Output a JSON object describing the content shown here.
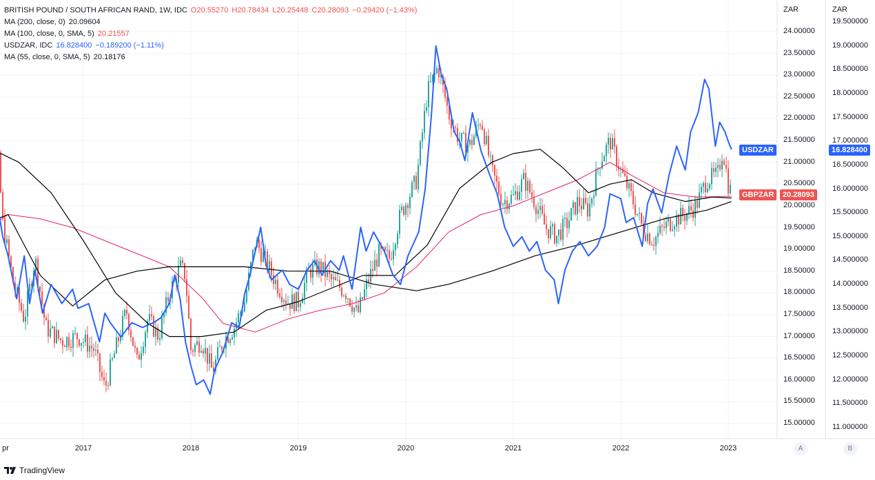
{
  "legend": {
    "main": {
      "title": "BRITISH POUND / SOUTH AFRICAN RAND, 1W, IDC",
      "o": "O20.55270",
      "h": "H20.78434",
      "l": "L20.25448",
      "c": "C20.28093",
      "chg": "−0.29420 (−1.43%)"
    },
    "ma200": {
      "label": "MA (200, close, 0)",
      "value": "20.09604"
    },
    "ma100": {
      "label": "MA (100, close, 0, SMA, 5)",
      "value": "20.21557"
    },
    "usdzar": {
      "label": "USDZAR, IDC",
      "value": "16.828400",
      "chg": "−0.189200 (−1.11%)"
    },
    "ma55": {
      "label": "MA (55, close, 0, SMA, 5)",
      "value": "20.18176"
    }
  },
  "axes": {
    "left_title": "ZAR",
    "right_title": "ZAR",
    "a_button": "A",
    "b_button": "B",
    "gbp_ticks": [
      "24.00000",
      "23.50000",
      "23.00000",
      "22.50000",
      "22.00000",
      "21.50000",
      "21.00000",
      "20.50000",
      "20.00000",
      "19.50000",
      "19.00000",
      "18.50000",
      "18.00000",
      "17.50000",
      "17.00000",
      "16.50000",
      "16.00000",
      "15.50000",
      "15.00000"
    ],
    "usd_ticks": [
      "19.500000",
      "19.000000",
      "18.500000",
      "18.000000",
      "17.500000",
      "17.000000",
      "16.500000",
      "16.000000",
      "15.500000",
      "15.000000",
      "14.500000",
      "14.000000",
      "13.500000",
      "13.000000",
      "12.500000",
      "12.000000",
      "11.500000",
      "11.000000"
    ],
    "x_ticks": [
      "pr",
      "2017",
      "2018",
      "2019",
      "2020",
      "2021",
      "2022",
      "2023"
    ]
  },
  "flags": {
    "usdzar_name": "USDZAR",
    "usdzar_value": "16.828400",
    "gbpzar_name": "GBPZAR",
    "gbpzar_value": "20.28093"
  },
  "colors": {
    "up": "#26a69a",
    "down": "#ef5350",
    "usdzar": "#2962ff",
    "ma200": "#000000",
    "ma100": "#e91e63",
    "ma55": "#000000"
  },
  "brand": "TradingView",
  "chart_data": {
    "type": "line",
    "title": "BRITISH POUND / SOUTH AFRICAN RAND, 1W, IDC",
    "gbp_ylim": [
      14.6,
      24.6
    ],
    "usd_ylim": [
      10.6,
      20.0
    ],
    "x_range": [
      2016.0,
      2023.4
    ],
    "gbpzar_close": [
      [
        2016.0,
        20.9
      ],
      [
        2016.1,
        22.8
      ],
      [
        2016.2,
        21.4
      ],
      [
        2016.25,
        19.6
      ],
      [
        2016.35,
        18.2
      ],
      [
        2016.45,
        17.4
      ],
      [
        2016.55,
        18.8
      ],
      [
        2016.65,
        17.2
      ],
      [
        2016.8,
        16.9
      ],
      [
        2016.95,
        17.0
      ],
      [
        2017.1,
        16.7
      ],
      [
        2017.2,
        15.8
      ],
      [
        2017.3,
        16.7
      ],
      [
        2017.4,
        17.6
      ],
      [
        2017.5,
        16.4
      ],
      [
        2017.6,
        17.4
      ],
      [
        2017.7,
        17.0
      ],
      [
        2017.8,
        18.0
      ],
      [
        2017.9,
        18.6
      ],
      [
        2017.95,
        18.4
      ],
      [
        2018.0,
        16.7
      ],
      [
        2018.1,
        16.9
      ],
      [
        2018.2,
        16.2
      ],
      [
        2018.3,
        16.9
      ],
      [
        2018.4,
        17.2
      ],
      [
        2018.5,
        17.8
      ],
      [
        2018.6,
        19.2
      ],
      [
        2018.7,
        18.7
      ],
      [
        2018.8,
        18.2
      ],
      [
        2018.9,
        17.8
      ],
      [
        2019.0,
        17.8
      ],
      [
        2019.1,
        18.5
      ],
      [
        2019.2,
        18.6
      ],
      [
        2019.3,
        18.3
      ],
      [
        2019.45,
        18.0
      ],
      [
        2019.55,
        17.5
      ],
      [
        2019.65,
        18.3
      ],
      [
        2019.75,
        18.9
      ],
      [
        2019.85,
        18.8
      ],
      [
        2019.95,
        19.8
      ],
      [
        2020.1,
        20.6
      ],
      [
        2020.2,
        22.6
      ],
      [
        2020.3,
        23.2
      ],
      [
        2020.4,
        22.1
      ],
      [
        2020.5,
        21.5
      ],
      [
        2020.6,
        21.4
      ],
      [
        2020.7,
        22.0
      ],
      [
        2020.8,
        20.8
      ],
      [
        2020.9,
        20.1
      ],
      [
        2021.0,
        20.2
      ],
      [
        2021.1,
        20.6
      ],
      [
        2021.2,
        20.1
      ],
      [
        2021.3,
        19.5
      ],
      [
        2021.4,
        19.3
      ],
      [
        2021.5,
        19.6
      ],
      [
        2021.6,
        20.1
      ],
      [
        2021.7,
        19.9
      ],
      [
        2021.8,
        21.0
      ],
      [
        2021.9,
        21.5
      ],
      [
        2022.0,
        20.8
      ],
      [
        2022.1,
        20.2
      ],
      [
        2022.2,
        19.5
      ],
      [
        2022.3,
        19.2
      ],
      [
        2022.4,
        19.5
      ],
      [
        2022.5,
        19.7
      ],
      [
        2022.6,
        19.8
      ],
      [
        2022.7,
        20.0
      ],
      [
        2022.8,
        20.6
      ],
      [
        2022.9,
        20.7
      ],
      [
        2022.95,
        21.3
      ],
      [
        2023.0,
        20.5
      ],
      [
        2023.03,
        20.28
      ]
    ],
    "usdzar": [
      [
        2016.0,
        15.3
      ],
      [
        2016.03,
        14.5
      ],
      [
        2016.08,
        16.4
      ],
      [
        2016.12,
        16.7
      ],
      [
        2016.2,
        15.7
      ],
      [
        2016.25,
        15.0
      ],
      [
        2016.3,
        14.6
      ],
      [
        2016.38,
        13.7
      ],
      [
        2016.45,
        14.6
      ],
      [
        2016.5,
        13.6
      ],
      [
        2016.55,
        14.3
      ],
      [
        2016.62,
        13.4
      ],
      [
        2016.7,
        14.0
      ],
      [
        2016.8,
        13.6
      ],
      [
        2016.9,
        13.9
      ],
      [
        2016.95,
        13.5
      ],
      [
        2017.05,
        13.6
      ],
      [
        2017.15,
        12.8
      ],
      [
        2017.2,
        13.4
      ],
      [
        2017.25,
        13.2
      ],
      [
        2017.35,
        12.9
      ],
      [
        2017.45,
        13.2
      ],
      [
        2017.55,
        13.1
      ],
      [
        2017.65,
        13.2
      ],
      [
        2017.72,
        13.3
      ],
      [
        2017.8,
        13.6
      ],
      [
        2017.85,
        14.2
      ],
      [
        2017.9,
        13.7
      ],
      [
        2017.95,
        12.8
      ],
      [
        2018.0,
        12.3
      ],
      [
        2018.05,
        11.9
      ],
      [
        2018.12,
        12.0
      ],
      [
        2018.18,
        11.7
      ],
      [
        2018.22,
        12.2
      ],
      [
        2018.3,
        12.6
      ],
      [
        2018.38,
        13.2
      ],
      [
        2018.45,
        13.1
      ],
      [
        2018.5,
        13.8
      ],
      [
        2018.55,
        14.2
      ],
      [
        2018.6,
        14.7
      ],
      [
        2018.65,
        15.2
      ],
      [
        2018.7,
        14.4
      ],
      [
        2018.75,
        14.1
      ],
      [
        2018.85,
        14.3
      ],
      [
        2018.92,
        14.0
      ],
      [
        2019.0,
        13.9
      ],
      [
        2019.08,
        14.3
      ],
      [
        2019.15,
        14.5
      ],
      [
        2019.22,
        14.2
      ],
      [
        2019.3,
        14.5
      ],
      [
        2019.38,
        14.3
      ],
      [
        2019.42,
        14.6
      ],
      [
        2019.5,
        13.9
      ],
      [
        2019.58,
        15.2
      ],
      [
        2019.63,
        14.7
      ],
      [
        2019.7,
        15.1
      ],
      [
        2019.75,
        14.9
      ],
      [
        2019.8,
        14.7
      ],
      [
        2019.88,
        14.2
      ],
      [
        2019.95,
        14.0
      ],
      [
        2020.02,
        14.6
      ],
      [
        2020.12,
        15.1
      ],
      [
        2020.18,
        16.0
      ],
      [
        2020.24,
        17.6
      ],
      [
        2020.28,
        19.0
      ],
      [
        2020.33,
        18.4
      ],
      [
        2020.38,
        18.1
      ],
      [
        2020.45,
        17.2
      ],
      [
        2020.5,
        17.0
      ],
      [
        2020.55,
        16.6
      ],
      [
        2020.62,
        17.6
      ],
      [
        2020.7,
        16.8
      ],
      [
        2020.78,
        16.3
      ],
      [
        2020.85,
        15.9
      ],
      [
        2020.92,
        15.2
      ],
      [
        2021.0,
        14.8
      ],
      [
        2021.08,
        15.0
      ],
      [
        2021.15,
        14.7
      ],
      [
        2021.22,
        14.9
      ],
      [
        2021.3,
        14.3
      ],
      [
        2021.38,
        14.1
      ],
      [
        2021.42,
        13.6
      ],
      [
        2021.48,
        14.3
      ],
      [
        2021.55,
        14.7
      ],
      [
        2021.62,
        14.9
      ],
      [
        2021.7,
        14.6
      ],
      [
        2021.78,
        14.8
      ],
      [
        2021.85,
        15.2
      ],
      [
        2021.9,
        15.9
      ],
      [
        2022.0,
        15.8
      ],
      [
        2022.05,
        15.3
      ],
      [
        2022.12,
        15.4
      ],
      [
        2022.2,
        14.8
      ],
      [
        2022.25,
        15.7
      ],
      [
        2022.3,
        16.0
      ],
      [
        2022.38,
        15.5
      ],
      [
        2022.45,
        16.3
      ],
      [
        2022.52,
        16.9
      ],
      [
        2022.6,
        16.4
      ],
      [
        2022.65,
        17.2
      ],
      [
        2022.72,
        17.6
      ],
      [
        2022.78,
        18.3
      ],
      [
        2022.82,
        18.1
      ],
      [
        2022.88,
        16.9
      ],
      [
        2022.92,
        17.4
      ],
      [
        2022.97,
        17.2
      ],
      [
        2023.0,
        17.0
      ],
      [
        2023.03,
        16.83
      ]
    ],
    "ma200": [
      [
        2016.0,
        19.5
      ],
      [
        2016.3,
        19.8
      ],
      [
        2016.6,
        18.4
      ],
      [
        2016.9,
        17.7
      ],
      [
        2017.2,
        18.3
      ],
      [
        2017.5,
        18.5
      ],
      [
        2017.8,
        18.6
      ],
      [
        2018.1,
        18.6
      ],
      [
        2018.5,
        18.6
      ],
      [
        2018.9,
        18.5
      ],
      [
        2019.3,
        18.5
      ],
      [
        2019.7,
        18.2
      ],
      [
        2020.1,
        18.05
      ],
      [
        2020.4,
        18.2
      ],
      [
        2020.8,
        18.5
      ],
      [
        2021.2,
        18.85
      ],
      [
        2021.6,
        19.1
      ],
      [
        2022.0,
        19.4
      ],
      [
        2022.4,
        19.7
      ],
      [
        2022.8,
        19.9
      ],
      [
        2023.03,
        20.1
      ]
    ],
    "ma100": [
      [
        2016.0,
        19.3
      ],
      [
        2016.3,
        19.8
      ],
      [
        2016.6,
        19.7
      ],
      [
        2016.9,
        19.5
      ],
      [
        2017.2,
        19.2
      ],
      [
        2017.5,
        18.9
      ],
      [
        2017.8,
        18.6
      ],
      [
        2018.1,
        17.9
      ],
      [
        2018.3,
        17.3
      ],
      [
        2018.6,
        17.1
      ],
      [
        2018.9,
        17.4
      ],
      [
        2019.2,
        17.6
      ],
      [
        2019.5,
        17.75
      ],
      [
        2019.8,
        18.0
      ],
      [
        2020.1,
        18.6
      ],
      [
        2020.4,
        19.4
      ],
      [
        2020.7,
        19.8
      ],
      [
        2021.0,
        20.0
      ],
      [
        2021.3,
        20.3
      ],
      [
        2021.6,
        20.6
      ],
      [
        2021.9,
        21.0
      ],
      [
        2022.1,
        20.7
      ],
      [
        2022.4,
        20.3
      ],
      [
        2022.7,
        20.2
      ],
      [
        2023.03,
        20.22
      ]
    ],
    "ma55": [
      [
        2016.0,
        20.9
      ],
      [
        2016.15,
        21.3
      ],
      [
        2016.4,
        21.0
      ],
      [
        2016.7,
        20.3
      ],
      [
        2017.0,
        19.2
      ],
      [
        2017.3,
        18.0
      ],
      [
        2017.6,
        17.3
      ],
      [
        2017.8,
        17.0
      ],
      [
        2018.1,
        17.0
      ],
      [
        2018.4,
        17.1
      ],
      [
        2018.7,
        17.6
      ],
      [
        2019.0,
        17.8
      ],
      [
        2019.3,
        18.1
      ],
      [
        2019.6,
        18.4
      ],
      [
        2019.9,
        18.4
      ],
      [
        2020.2,
        19.1
      ],
      [
        2020.5,
        20.4
      ],
      [
        2020.8,
        21.0
      ],
      [
        2021.0,
        21.2
      ],
      [
        2021.25,
        21.3
      ],
      [
        2021.45,
        20.9
      ],
      [
        2021.7,
        20.3
      ],
      [
        2021.9,
        20.5
      ],
      [
        2022.1,
        20.6
      ],
      [
        2022.3,
        20.3
      ],
      [
        2022.6,
        20.1
      ],
      [
        2022.85,
        20.2
      ],
      [
        2023.03,
        20.18
      ]
    ]
  }
}
